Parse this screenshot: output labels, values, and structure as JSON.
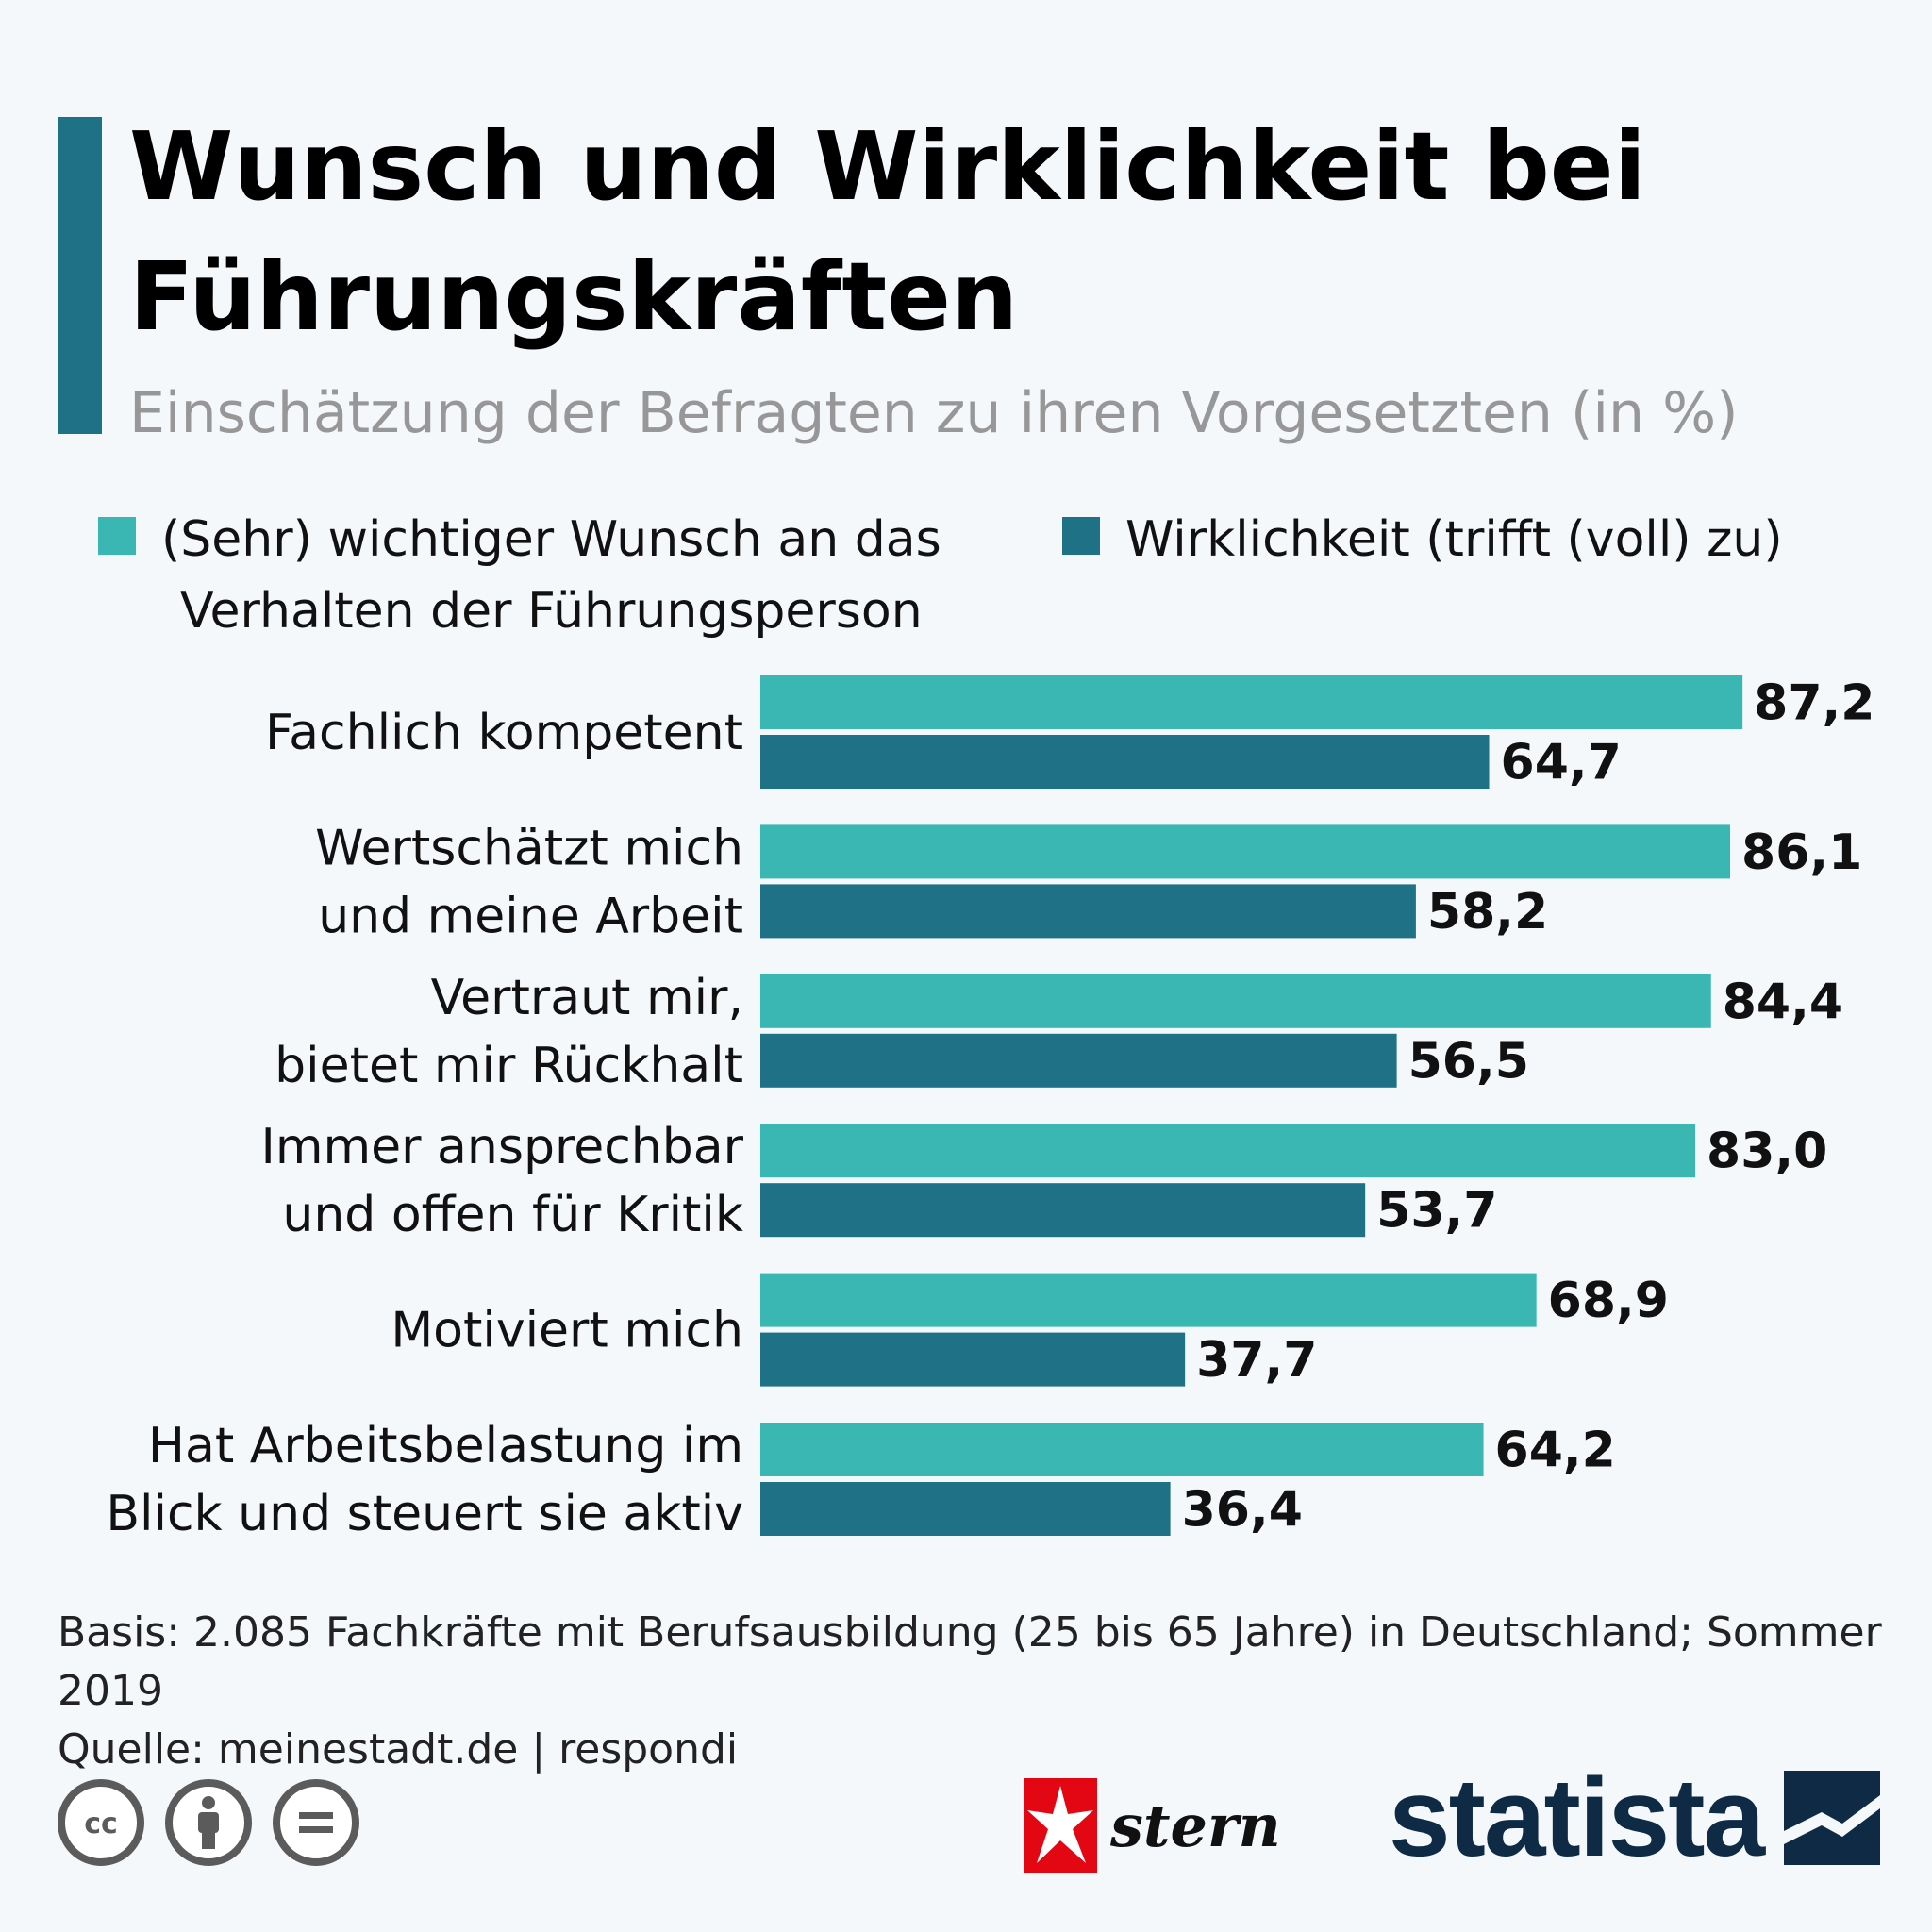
{
  "header": {
    "title": "Wunsch und Wirklichkeit bei Führungskräften",
    "subtitle": "Einschätzung der Befragten zu ihren Vorgesetzten (in %)"
  },
  "legend": [
    {
      "label_lines": [
        "(Sehr) wichtiger Wunsch an das",
        "Verhalten der Führungsperson"
      ],
      "color": "#3bb7b3"
    },
    {
      "label_lines": [
        "Wirklichkeit (trifft (voll) zu)"
      ],
      "color": "#1f7185"
    }
  ],
  "chart_data": {
    "type": "bar",
    "orientation": "horizontal",
    "categories": [
      [
        "Fachlich kompetent"
      ],
      [
        "Wertschätzt mich",
        "und meine Arbeit"
      ],
      [
        "Vertraut mir,",
        "bietet mir Rückhalt"
      ],
      [
        "Immer ansprechbar",
        "und offen für Kritik"
      ],
      [
        "Motiviert mich"
      ],
      [
        "Hat Arbeitsbelastung im",
        "Blick und steuert sie aktiv"
      ]
    ],
    "series": [
      {
        "name": "(Sehr) wichtiger Wunsch an das Verhalten der Führungsperson",
        "values": [
          87.2,
          86.1,
          84.4,
          83.0,
          68.9,
          64.2
        ],
        "labels": [
          "87,2",
          "86,1",
          "84,4",
          "83,0",
          "68,9",
          "64,2"
        ],
        "color": "#3bb7b3"
      },
      {
        "name": "Wirklichkeit (trifft (voll) zu)",
        "values": [
          64.7,
          58.2,
          56.5,
          53.7,
          37.7,
          36.4
        ],
        "labels": [
          "64,7",
          "58,2",
          "56,5",
          "53,7",
          "37,7",
          "36,4"
        ],
        "color": "#1f7185"
      }
    ],
    "xlim": [
      0,
      100
    ],
    "grid": false,
    "legend_position": "top"
  },
  "footer": {
    "basis": "Basis: 2.085 Fachkräfte mit Berufsausbildung (25 bis 65 Jahre) in Deutschland; Sommer 2019",
    "source": "Quelle: meinestadt.de | respondi"
  },
  "logos": {
    "stern": "stern",
    "statista": "statista"
  },
  "license_icons": [
    "cc-icon",
    "by-icon",
    "nd-icon"
  ]
}
